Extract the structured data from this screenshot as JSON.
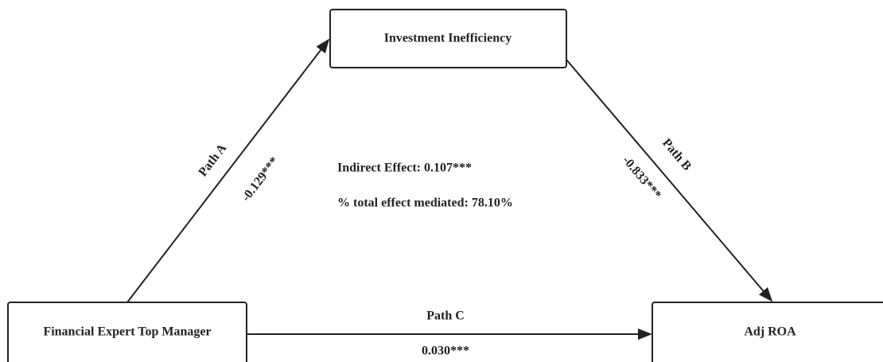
{
  "nodes": [
    {
      "label": "Investment Inefficiency"
    },
    {
      "label": "Financial Expert Top Manager"
    },
    {
      "label": "Adj ROA"
    }
  ],
  "edges": [
    {
      "label": "Path A",
      "coefficient": "-0.129***"
    },
    {
      "label": "Path B",
      "coefficient": "-0.833***"
    },
    {
      "label": "Path C",
      "coefficient": "0.030***"
    }
  ],
  "annotations": [
    "Indirect Effect: 0.107***",
    "% total effect mediated: 78.10%"
  ]
}
